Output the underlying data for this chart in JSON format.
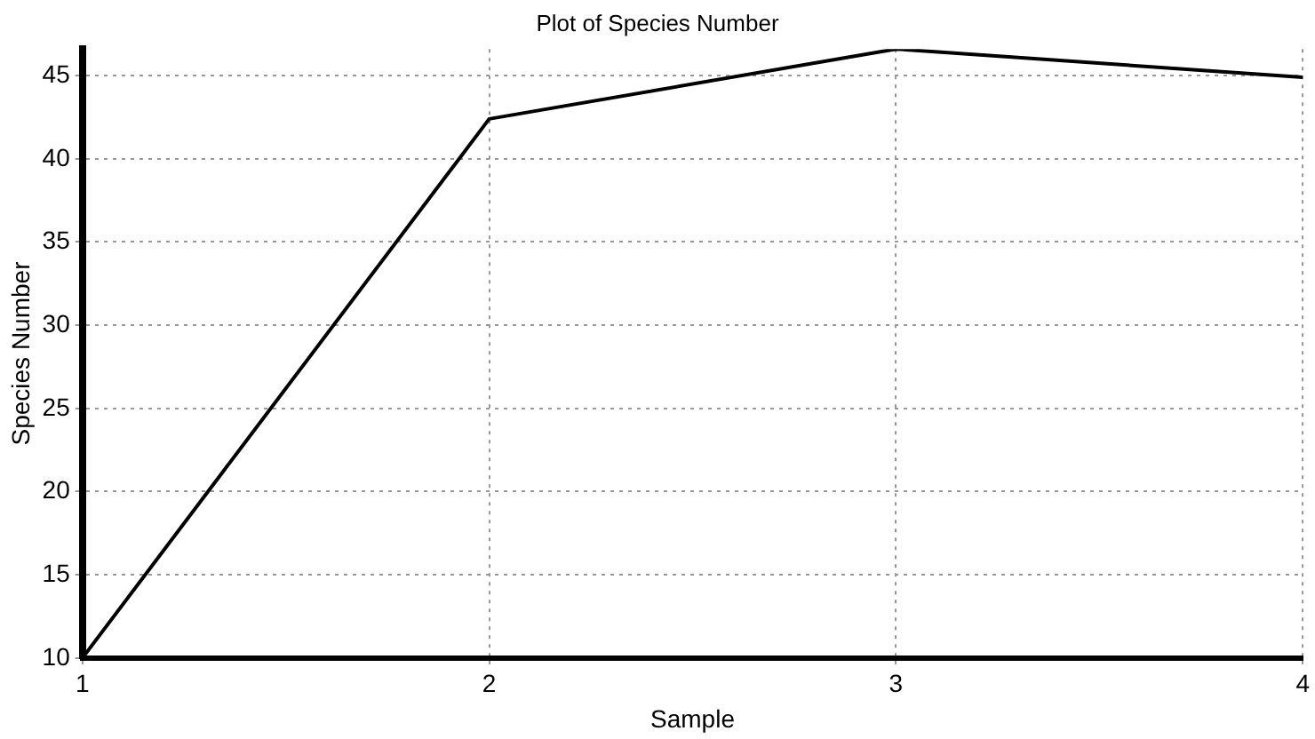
{
  "chart_data": {
    "type": "line",
    "title": "Plot of Species Number",
    "xlabel": "Sample",
    "ylabel": "Species Number",
    "x": [
      1,
      2,
      3,
      4
    ],
    "series": [
      {
        "color": "#000000",
        "values": [
          10,
          42.4,
          46.6,
          44.9
        ]
      }
    ],
    "xlim": [
      1,
      4
    ],
    "xticks": [
      1,
      2,
      3,
      4
    ],
    "ylim": [
      10,
      46.6
    ],
    "yticks": [
      10,
      15,
      20,
      25,
      30,
      35,
      40,
      45
    ],
    "grid": true,
    "legend": false,
    "marker": "none",
    "line_style": "solid"
  }
}
